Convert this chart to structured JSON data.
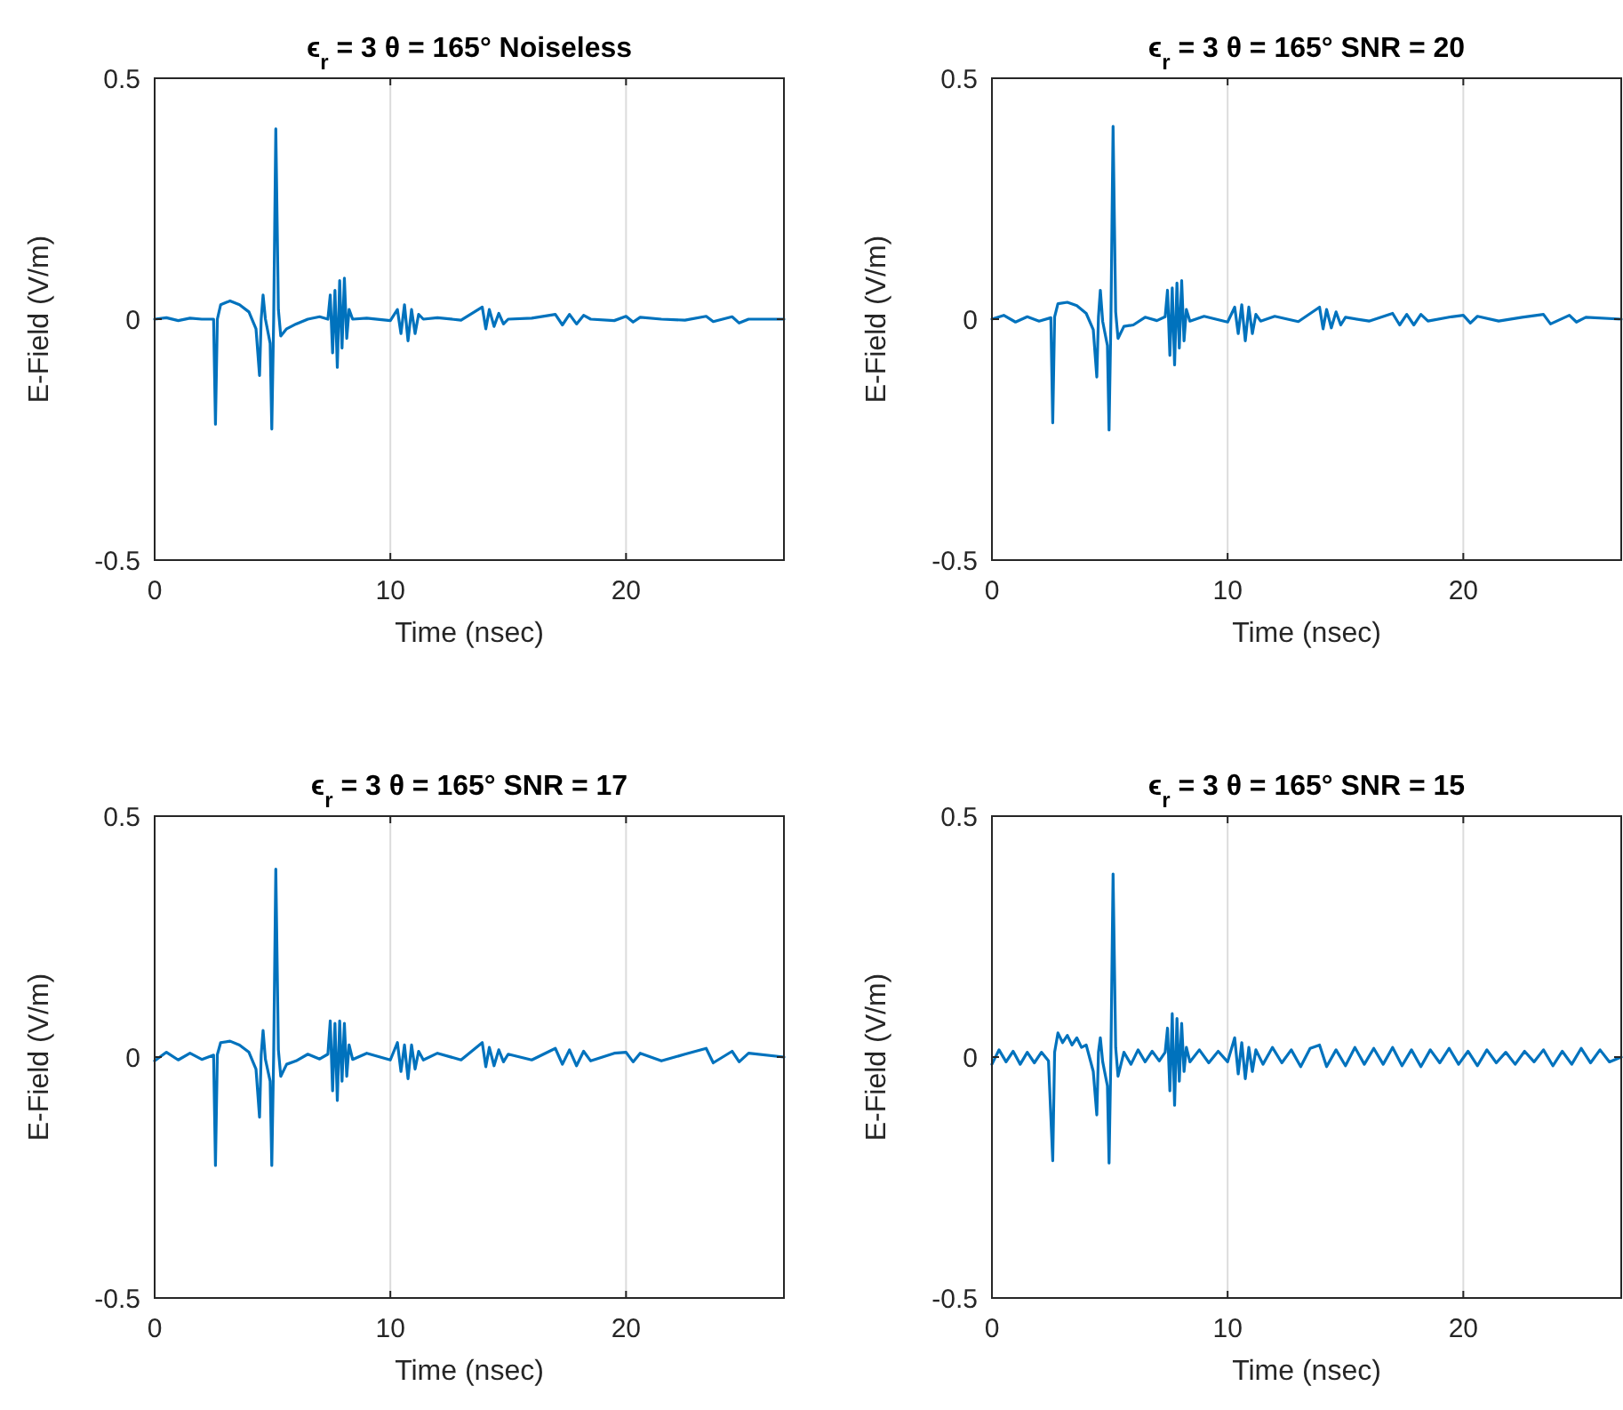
{
  "chart_data": [
    {
      "type": "line",
      "title": "ϵ$_{r}$ = 3  θ = 165°  Noiseless",
      "xlabel": "Time (nsec)",
      "ylabel": "E-Field (V/m)",
      "color": "#0072bd",
      "xlim": [
        0,
        26.7
      ],
      "ylim": [
        -0.5,
        0.5
      ],
      "xticks": [
        0,
        10,
        20
      ],
      "yticks": [
        -0.5,
        0,
        0.5
      ],
      "grid": "x",
      "x": [
        0,
        0.5,
        1,
        1.5,
        2,
        2.5,
        2.58,
        2.66,
        2.8,
        3.2,
        3.6,
        4.0,
        4.3,
        4.45,
        4.52,
        4.6,
        4.7,
        4.9,
        4.97,
        5.05,
        5.14,
        5.25,
        5.35,
        5.6,
        6.0,
        6.5,
        7.0,
        7.35,
        7.45,
        7.55,
        7.65,
        7.75,
        7.85,
        7.95,
        8.05,
        8.15,
        8.25,
        8.4,
        9,
        10,
        10.3,
        10.45,
        10.6,
        10.75,
        10.9,
        11.05,
        11.2,
        11.4,
        12,
        13,
        13.9,
        14.05,
        14.2,
        14.4,
        14.6,
        14.8,
        15.0,
        16,
        17,
        17.3,
        17.6,
        17.9,
        18.2,
        18.5,
        19.5,
        20,
        20.3,
        20.6,
        21.5,
        22.5,
        23.4,
        23.7,
        24.5,
        24.8,
        25.2,
        26.7
      ],
      "values": [
        0,
        0.003,
        -0.003,
        0.002,
        0,
        0,
        -0.218,
        0,
        0.03,
        0.038,
        0.03,
        0.015,
        -0.02,
        -0.117,
        0,
        0.05,
        0,
        -0.05,
        -0.228,
        0,
        0.395,
        0.02,
        -0.035,
        -0.02,
        -0.01,
        0,
        0.005,
        0,
        0.05,
        -0.07,
        0.06,
        -0.1,
        0.08,
        -0.06,
        0.085,
        -0.04,
        0.02,
        0,
        0.002,
        -0.003,
        0.02,
        -0.03,
        0.03,
        -0.045,
        0.02,
        -0.03,
        0.01,
        0,
        0.003,
        -0.002,
        0.025,
        -0.02,
        0.02,
        -0.015,
        0.012,
        -0.01,
        0,
        0.002,
        0.01,
        -0.012,
        0.01,
        -0.01,
        0.008,
        0,
        -0.003,
        0.006,
        -0.006,
        0.004,
        0,
        -0.002,
        0.006,
        -0.005,
        0.005,
        -0.008,
        0,
        0
      ]
    },
    {
      "type": "line",
      "title": "ϵ$_{r}$ = 3  θ = 165°  SNR = 20",
      "xlabel": "Time (nsec)",
      "ylabel": "E-Field (V/m)",
      "color": "#0072bd",
      "xlim": [
        0,
        26.7
      ],
      "ylim": [
        -0.5,
        0.5
      ],
      "xticks": [
        0,
        10,
        20
      ],
      "yticks": [
        -0.5,
        0,
        0.5
      ],
      "grid": "x",
      "x": [
        0,
        0.5,
        1,
        1.5,
        2,
        2.5,
        2.58,
        2.66,
        2.8,
        3.2,
        3.6,
        4.0,
        4.3,
        4.45,
        4.52,
        4.6,
        4.7,
        4.9,
        4.97,
        5.05,
        5.14,
        5.25,
        5.35,
        5.6,
        6.0,
        6.5,
        7.0,
        7.35,
        7.45,
        7.55,
        7.65,
        7.75,
        7.85,
        7.95,
        8.05,
        8.15,
        8.25,
        8.4,
        9,
        10,
        10.3,
        10.45,
        10.6,
        10.75,
        10.9,
        11.05,
        11.2,
        11.4,
        12,
        13,
        13.9,
        14.05,
        14.2,
        14.4,
        14.6,
        14.8,
        15.0,
        16,
        17,
        17.3,
        17.6,
        17.9,
        18.2,
        18.5,
        19.5,
        20,
        20.3,
        20.6,
        21.5,
        22.5,
        23.4,
        23.7,
        24.5,
        24.8,
        25.2,
        26.7
      ],
      "values": [
        0,
        0.008,
        -0.006,
        0.005,
        -0.004,
        0.003,
        -0.215,
        0.005,
        0.032,
        0.035,
        0.028,
        0.012,
        -0.022,
        -0.12,
        0.005,
        0.06,
        -0.005,
        -0.055,
        -0.23,
        0.005,
        0.4,
        0.015,
        -0.04,
        -0.015,
        -0.012,
        0.004,
        -0.003,
        0.005,
        0.06,
        -0.075,
        0.065,
        -0.095,
        0.075,
        -0.06,
        0.08,
        -0.045,
        0.02,
        -0.004,
        0.006,
        -0.006,
        0.025,
        -0.03,
        0.03,
        -0.045,
        0.025,
        -0.03,
        0.01,
        -0.004,
        0.006,
        -0.005,
        0.025,
        -0.02,
        0.02,
        -0.018,
        0.015,
        -0.012,
        0.004,
        -0.004,
        0.012,
        -0.012,
        0.01,
        -0.012,
        0.01,
        -0.004,
        0.005,
        0.008,
        -0.008,
        0.006,
        -0.004,
        0.004,
        0.01,
        -0.01,
        0.008,
        -0.006,
        0.004,
        0
      ]
    },
    {
      "type": "line",
      "title": "ϵ$_{r}$ = 3  θ = 165°  SNR = 17",
      "xlabel": "Time (nsec)",
      "ylabel": "E-Field (V/m)",
      "color": "#0072bd",
      "xlim": [
        0,
        26.7
      ],
      "ylim": [
        -0.5,
        0.5
      ],
      "xticks": [
        0,
        10,
        20
      ],
      "yticks": [
        -0.5,
        0,
        0.5
      ],
      "grid": "x",
      "x": [
        0,
        0.5,
        1,
        1.5,
        2,
        2.5,
        2.58,
        2.66,
        2.8,
        3.2,
        3.6,
        4.0,
        4.3,
        4.45,
        4.52,
        4.6,
        4.7,
        4.9,
        4.97,
        5.05,
        5.14,
        5.25,
        5.35,
        5.6,
        6.0,
        6.5,
        7.0,
        7.35,
        7.45,
        7.55,
        7.65,
        7.75,
        7.85,
        7.95,
        8.05,
        8.15,
        8.25,
        8.4,
        9,
        10,
        10.3,
        10.45,
        10.6,
        10.75,
        10.9,
        11.05,
        11.2,
        11.4,
        12,
        13,
        13.9,
        14.05,
        14.2,
        14.4,
        14.6,
        14.8,
        15.0,
        16,
        17,
        17.3,
        17.6,
        17.9,
        18.2,
        18.5,
        19.5,
        20,
        20.3,
        20.6,
        21.5,
        22.5,
        23.4,
        23.7,
        24.5,
        24.8,
        25.2,
        26.7
      ],
      "values": [
        -0.008,
        0.01,
        -0.006,
        0.008,
        -0.005,
        0.004,
        -0.225,
        0.005,
        0.03,
        0.033,
        0.025,
        0.01,
        -0.025,
        -0.125,
        0.005,
        0.055,
        -0.005,
        -0.05,
        -0.225,
        0.005,
        0.39,
        0.015,
        -0.04,
        -0.015,
        -0.008,
        0.006,
        -0.004,
        0.006,
        0.075,
        -0.07,
        0.07,
        -0.09,
        0.075,
        -0.05,
        0.07,
        -0.04,
        0.025,
        -0.005,
        0.008,
        -0.006,
        0.03,
        -0.03,
        0.025,
        -0.045,
        0.025,
        -0.025,
        0.012,
        -0.006,
        0.008,
        -0.006,
        0.03,
        -0.02,
        0.02,
        -0.018,
        0.015,
        -0.01,
        0.006,
        -0.006,
        0.018,
        -0.015,
        0.015,
        -0.018,
        0.012,
        -0.008,
        0.008,
        0.01,
        -0.01,
        0.008,
        -0.008,
        0.006,
        0.018,
        -0.012,
        0.012,
        -0.01,
        0.008,
        0
      ]
    },
    {
      "type": "line",
      "title": "ϵ$_{r}$ = 3  θ = 165°  SNR = 15",
      "xlabel": "Time (nsec)",
      "ylabel": "E-Field (V/m)",
      "color": "#0072bd",
      "xlim": [
        0,
        26.7
      ],
      "ylim": [
        -0.5,
        0.5
      ],
      "xticks": [
        0,
        10,
        20
      ],
      "yticks": [
        -0.5,
        0,
        0.5
      ],
      "grid": "x",
      "x": [
        0,
        0.3,
        0.6,
        0.9,
        1.2,
        1.5,
        1.8,
        2.1,
        2.4,
        2.58,
        2.66,
        2.8,
        3.0,
        3.2,
        3.4,
        3.6,
        3.8,
        4.0,
        4.3,
        4.45,
        4.52,
        4.6,
        4.7,
        4.9,
        4.97,
        5.05,
        5.14,
        5.25,
        5.35,
        5.6,
        5.9,
        6.2,
        6.5,
        6.8,
        7.1,
        7.35,
        7.45,
        7.55,
        7.65,
        7.75,
        7.85,
        7.95,
        8.05,
        8.15,
        8.25,
        8.4,
        8.8,
        9.2,
        9.6,
        10,
        10.3,
        10.45,
        10.6,
        10.75,
        10.9,
        11.05,
        11.2,
        11.5,
        11.9,
        12.3,
        12.7,
        13.1,
        13.5,
        13.9,
        14.2,
        14.6,
        15.0,
        15.4,
        15.8,
        16.2,
        16.6,
        17.0,
        17.4,
        17.8,
        18.2,
        18.6,
        19.0,
        19.4,
        19.8,
        20.2,
        20.6,
        21.0,
        21.4,
        21.8,
        22.2,
        22.6,
        23.0,
        23.4,
        23.8,
        24.2,
        24.6,
        25.0,
        25.4,
        25.8,
        26.2,
        26.7
      ],
      "values": [
        -0.015,
        0.015,
        -0.01,
        0.012,
        -0.015,
        0.01,
        -0.012,
        0.01,
        -0.008,
        -0.215,
        0.01,
        0.05,
        0.03,
        0.045,
        0.025,
        0.04,
        0.02,
        0.025,
        -0.03,
        -0.12,
        0.01,
        0.04,
        -0.01,
        -0.06,
        -0.22,
        0.01,
        0.38,
        0.02,
        -0.04,
        0.01,
        -0.015,
        0.015,
        -0.01,
        0.012,
        -0.008,
        0.01,
        0.06,
        -0.07,
        0.09,
        -0.1,
        0.08,
        -0.05,
        0.07,
        -0.03,
        0.02,
        -0.01,
        0.015,
        -0.012,
        0.012,
        -0.01,
        0.04,
        -0.035,
        0.03,
        -0.045,
        0.02,
        -0.03,
        0.015,
        -0.015,
        0.02,
        -0.012,
        0.015,
        -0.02,
        0.018,
        0.025,
        -0.02,
        0.015,
        -0.018,
        0.02,
        -0.015,
        0.018,
        -0.015,
        0.02,
        -0.018,
        0.015,
        -0.02,
        0.015,
        -0.012,
        0.018,
        -0.015,
        0.012,
        -0.018,
        0.015,
        -0.012,
        0.01,
        -0.015,
        0.012,
        -0.01,
        0.015,
        -0.018,
        0.012,
        -0.015,
        0.018,
        -0.012,
        0.015,
        -0.01,
        0
      ]
    }
  ]
}
